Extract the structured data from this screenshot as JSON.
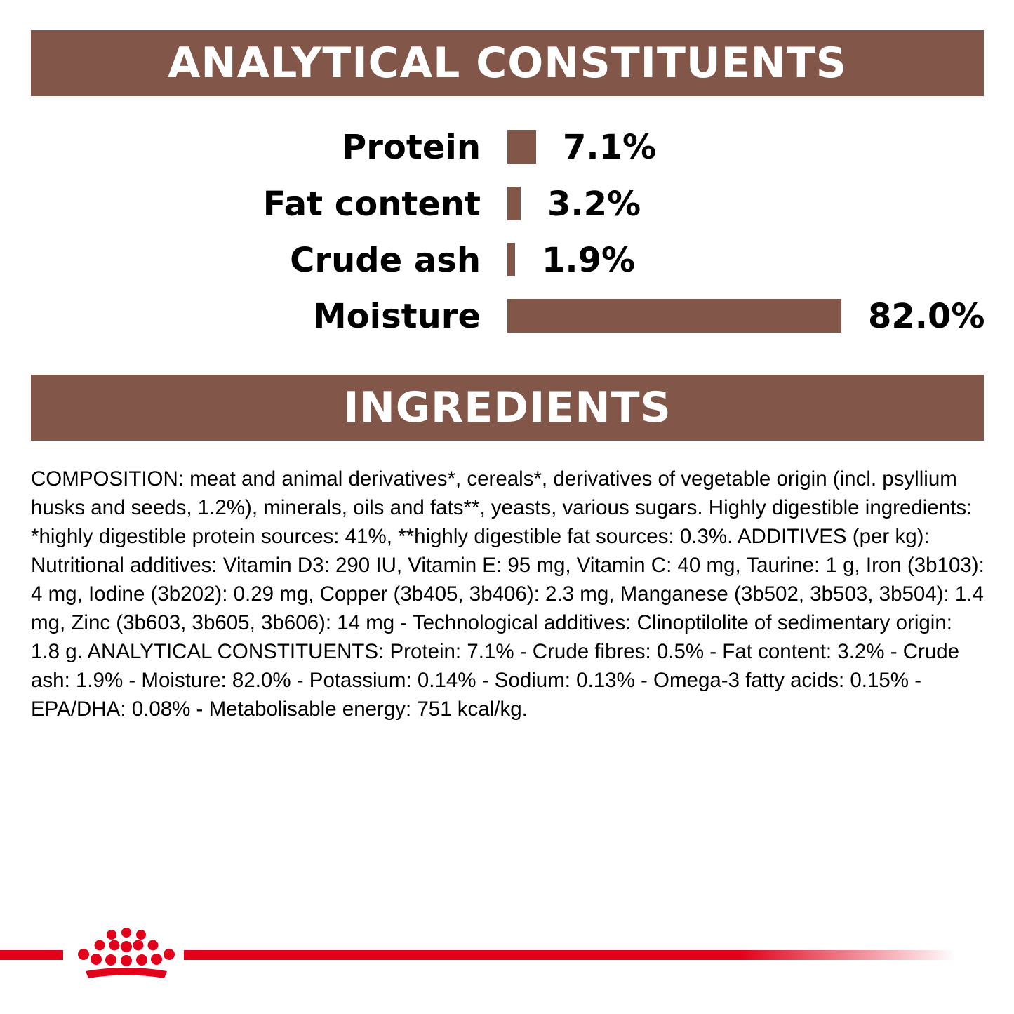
{
  "analytical": {
    "title": "ANALYTICAL CONSTITUENTS",
    "items": [
      {
        "label": "Protein",
        "value": 7.1,
        "display": "7.1%"
      },
      {
        "label": "Fat content",
        "value": 3.2,
        "display": "3.2%"
      },
      {
        "label": "Crude ash",
        "value": 1.9,
        "display": "1.9%"
      },
      {
        "label": "Moisture",
        "value": 82.0,
        "display": "82.0%"
      }
    ]
  },
  "ingredients": {
    "title": "INGREDIENTS",
    "composition": "COMPOSITION: meat and animal derivatives*, cereals*, derivatives of vegetable origin (incl. psyllium husks and seeds, 1.2%), minerals, oils and fats**, yeasts, various sugars. Highly digestible ingredients: *highly digestible protein sources: 41%, **highly digestible fat sources: 0.3%. ADDITIVES (per kg): Nutritional additives: Vitamin D3: 290 IU, Vitamin E: 95 mg, Vitamin C: 40 mg, Taurine: 1 g, Iron (3b103): 4 mg, Iodine (3b202): 0.29 mg, Copper (3b405, 3b406): 2.3 mg, Manganese (3b502, 3b503, 3b504): 1.4 mg, Zinc (3b603, 3b605, 3b606): 14 mg - Technological additives: Clinoptilolite of sedimentary origin: 1.8 g. ANALYTICAL CONSTITUENTS: Protein: 7.1% - Crude fibres: 0.5% - Fat content: 3.2% - Crude ash: 1.9% - Moisture: 82.0% - Potassium: 0.14% - Sodium: 0.13% - Omega-3 fatty acids: 0.15% - EPA/DHA: 0.08% - Metabolisable energy: 751 kcal/kg."
  },
  "colors": {
    "banner": "#82574a",
    "bar": "#82574a",
    "brand_red": "#e2001a"
  },
  "footer": {
    "logo_icon": "crown-icon"
  }
}
